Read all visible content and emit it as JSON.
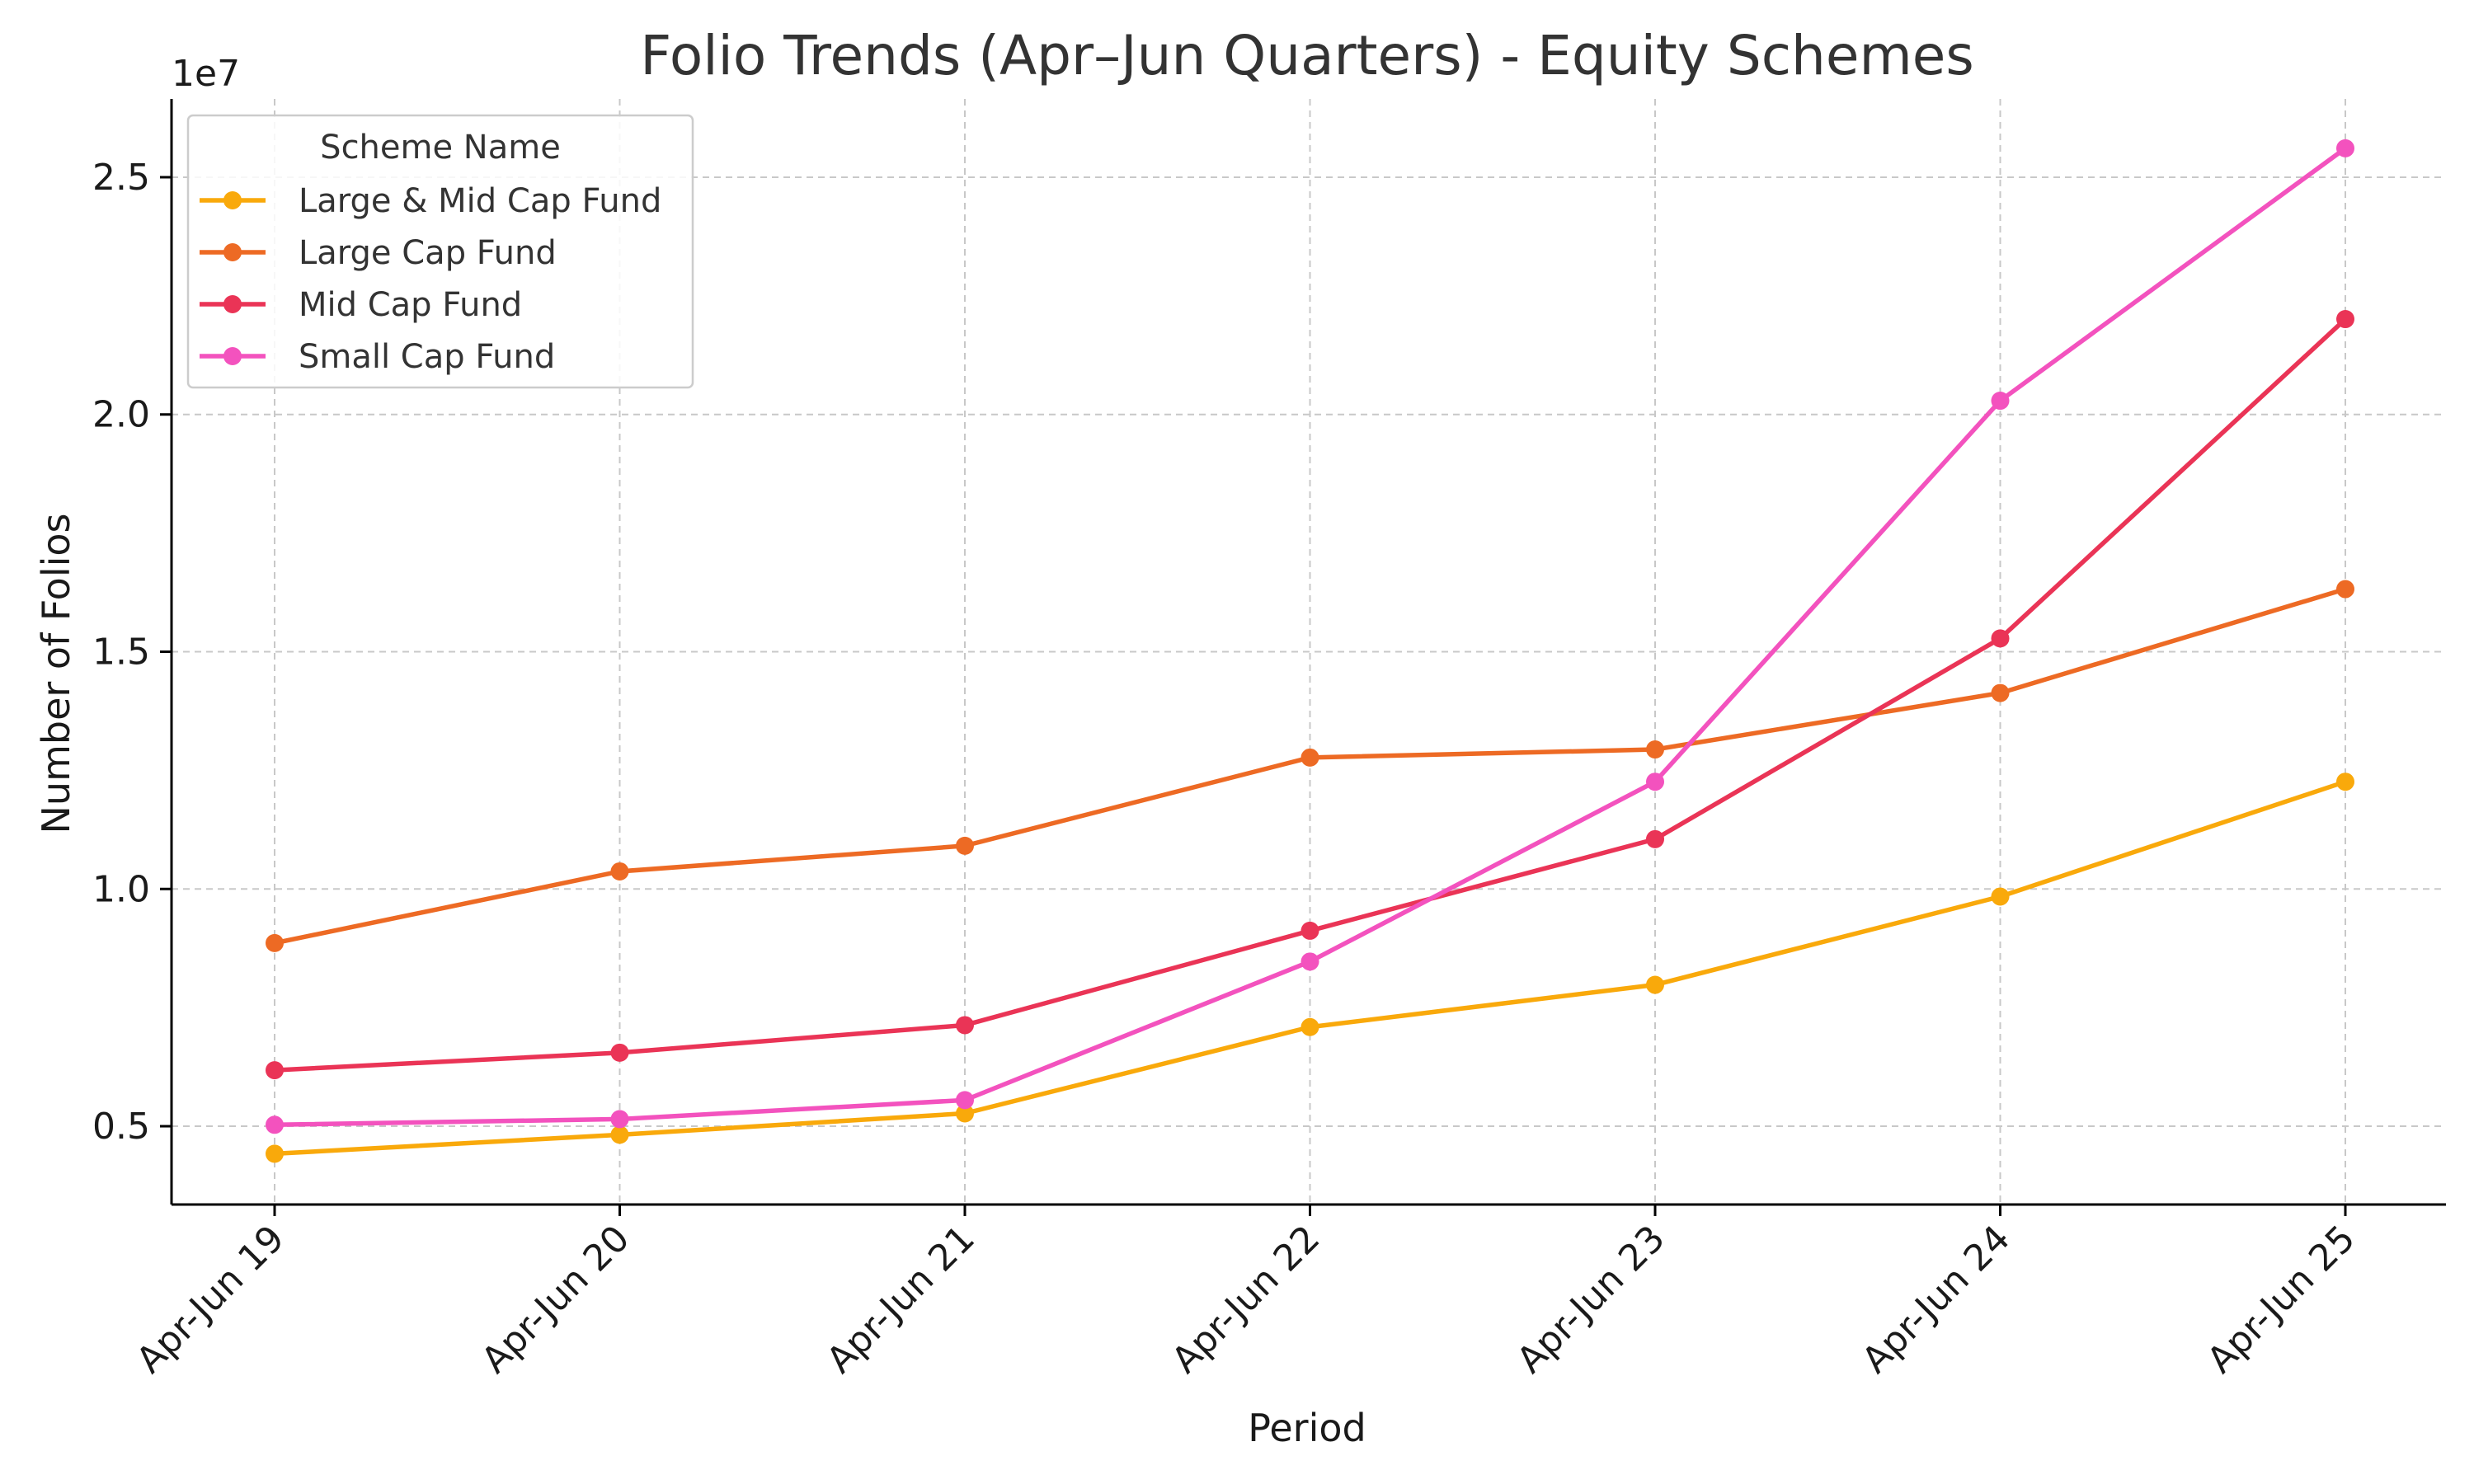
{
  "chart_data": {
    "type": "line",
    "title": "Folio Trends (Apr–Jun Quarters) - Equity Schemes",
    "xlabel": "Period",
    "ylabel": "Number of Folios",
    "y_offset_text": "1e7",
    "categories": [
      "Apr-Jun 19",
      "Apr-Jun 20",
      "Apr-Jun 21",
      "Apr-Jun 22",
      "Apr-Jun 23",
      "Apr-Jun 24",
      "Apr-Jun 25"
    ],
    "yticks": [
      0.5,
      1.0,
      1.5,
      2.0,
      2.5
    ],
    "ytick_labels": [
      "0.5",
      "1.0",
      "1.5",
      "2.0",
      "2.5"
    ],
    "y_multiplier": 10000000,
    "ylim": [
      0.335,
      2.665
    ],
    "grid": true,
    "legend": {
      "title": "Scheme Name",
      "placement": "top-left"
    },
    "series": [
      {
        "name": "Large & Mid Cap Fund",
        "color": "#F9A90B",
        "values": [
          0.442,
          0.482,
          0.527,
          0.709,
          0.798,
          0.984,
          1.226
        ]
      },
      {
        "name": "Large Cap Fund",
        "color": "#ED6A24",
        "values": [
          0.886,
          1.037,
          1.091,
          1.277,
          1.294,
          1.413,
          1.632
        ]
      },
      {
        "name": "Mid Cap Fund",
        "color": "#EA3456",
        "values": [
          0.618,
          0.655,
          0.713,
          0.912,
          1.105,
          1.528,
          2.201
        ]
      },
      {
        "name": "Small Cap Fund",
        "color": "#F352BE",
        "values": [
          0.503,
          0.515,
          0.555,
          0.847,
          1.226,
          2.029,
          2.561
        ]
      }
    ]
  }
}
